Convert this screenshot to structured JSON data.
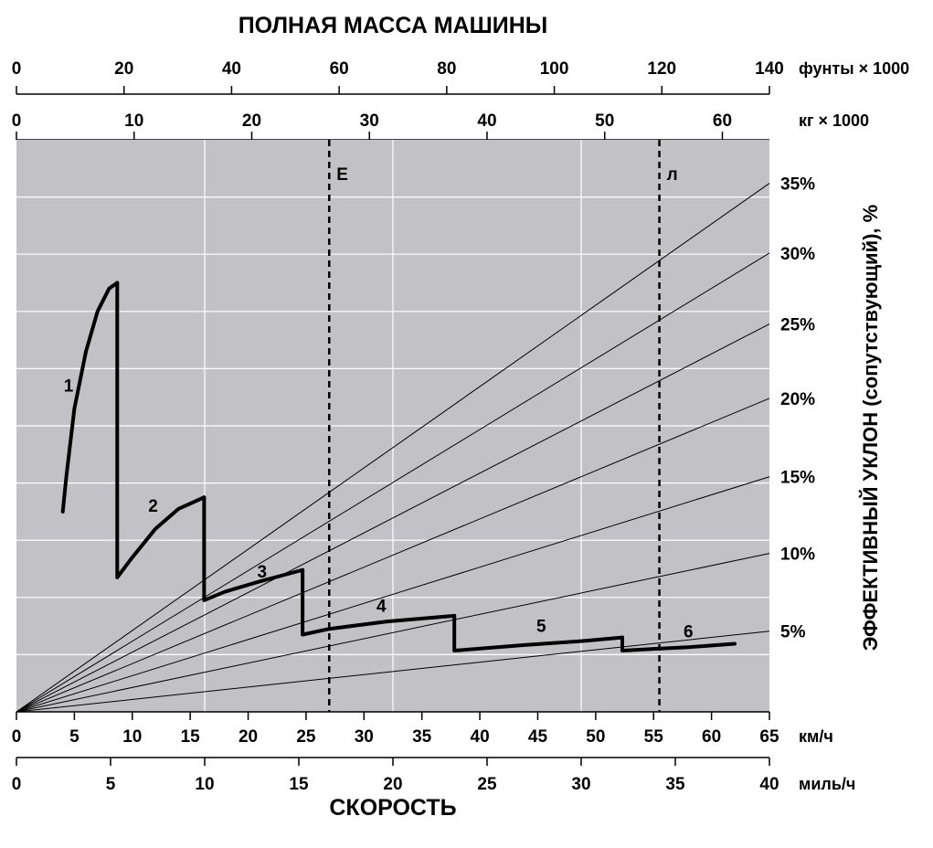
{
  "chart_data": {
    "type": "line",
    "title_top": "ПОЛНАЯ МАССА МАШИНЫ",
    "title_bottom": "СКОРОСТЬ",
    "ylabel": "ЭФФЕКТИВНЫЙ УКЛОН (сопутствующий), %",
    "axes": {
      "pounds": {
        "unit_label": "фунты × 1000",
        "range": [
          0,
          140
        ],
        "ticks": [
          "0",
          "20",
          "40",
          "60",
          "80",
          "100",
          "120",
          "140"
        ]
      },
      "kg": {
        "unit_label": "кг × 1000",
        "range": [
          0,
          64
        ],
        "ticks": [
          "0",
          "10",
          "20",
          "30",
          "40",
          "50",
          "60"
        ]
      },
      "kmh": {
        "unit_label": "км/ч",
        "range": [
          0,
          65
        ],
        "ticks": [
          "0",
          "5",
          "10",
          "15",
          "20",
          "25",
          "30",
          "35",
          "40",
          "45",
          "50",
          "55",
          "60",
          "65"
        ]
      },
      "mph": {
        "unit_label": "миль/ч",
        "range": [
          0,
          40
        ],
        "ticks": [
          "0",
          "5",
          "10",
          "15",
          "20",
          "25",
          "30",
          "35",
          "40"
        ]
      }
    },
    "grade_lines": [
      {
        "label": "35%",
        "end_y": 0.924
      },
      {
        "label": "30%",
        "end_y": 0.802
      },
      {
        "label": "25%",
        "end_y": 0.678
      },
      {
        "label": "20%",
        "end_y": 0.548
      },
      {
        "label": "15%",
        "end_y": 0.411
      },
      {
        "label": "10%",
        "end_y": 0.277
      },
      {
        "label": "5%",
        "end_y": 0.141
      }
    ],
    "grade_label_y": [
      0.924,
      0.802,
      0.678,
      0.548,
      0.411,
      0.277,
      0.141
    ],
    "reference_lines": [
      {
        "label": "Е",
        "kmh": 27
      },
      {
        "label": "л",
        "kmh": 55.5
      }
    ],
    "gear_curves": [
      {
        "name": "1",
        "label_at": [
          4.5,
          0.56
        ],
        "points": [
          [
            4,
            0.35
          ],
          [
            4.3,
            0.41
          ],
          [
            5,
            0.53
          ],
          [
            6,
            0.63
          ],
          [
            7,
            0.7
          ],
          [
            8,
            0.74
          ],
          [
            8.7,
            0.75
          ]
        ]
      },
      {
        "name": "2",
        "label_at": [
          11.8,
          0.35
        ],
        "points": [
          [
            8.7,
            0.75
          ],
          [
            8.7,
            0.235
          ],
          [
            10,
            0.27
          ],
          [
            12,
            0.32
          ],
          [
            14,
            0.355
          ],
          [
            16.2,
            0.375
          ]
        ]
      },
      {
        "name": "3",
        "label_at": [
          21.2,
          0.235
        ],
        "points": [
          [
            16.2,
            0.375
          ],
          [
            16.2,
            0.195
          ],
          [
            18,
            0.21
          ],
          [
            21,
            0.228
          ],
          [
            24.7,
            0.248
          ]
        ]
      },
      {
        "name": "4",
        "label_at": [
          31.5,
          0.175
        ],
        "points": [
          [
            24.7,
            0.248
          ],
          [
            24.7,
            0.135
          ],
          [
            27,
            0.145
          ],
          [
            32,
            0.158
          ],
          [
            37.8,
            0.168
          ]
        ]
      },
      {
        "name": "5",
        "label_at": [
          45.3,
          0.14
        ],
        "points": [
          [
            37.8,
            0.168
          ],
          [
            37.8,
            0.107
          ],
          [
            44,
            0.117
          ],
          [
            49,
            0.124
          ],
          [
            52.3,
            0.13
          ]
        ]
      },
      {
        "name": "6",
        "label_at": [
          58,
          0.13
        ],
        "points": [
          [
            52.3,
            0.13
          ],
          [
            52.3,
            0.107
          ],
          [
            55,
            0.11
          ],
          [
            58,
            0.113
          ],
          [
            62,
            0.119
          ]
        ]
      }
    ]
  }
}
